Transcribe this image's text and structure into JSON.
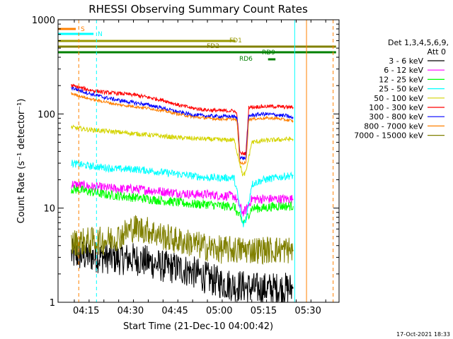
{
  "chart_data": {
    "type": "line",
    "title": "RHESSI Observing Summary Count Rates",
    "xlabel": "Start Time (21-Dec-10 04:00:42)",
    "ylabel": "Count Rate (s⁻¹ detector⁻¹)",
    "yscale": "log",
    "ylim": [
      1,
      1000
    ],
    "xlim_minutes": [
      4.5,
      40.5
    ],
    "x_ticks": [
      {
        "minute": 14,
        "label": "04:15"
      },
      {
        "minute": 29,
        "label": "04:30"
      },
      {
        "minute": 44,
        "label": "04:45"
      },
      {
        "minute": 59,
        "label": "05:00"
      },
      {
        "minute": 74,
        "label": "05:15"
      },
      {
        "minute": 89,
        "label": "05:30"
      }
    ],
    "y_ticks": [
      {
        "value": 1,
        "label": "1"
      },
      {
        "value": 10,
        "label": "10"
      },
      {
        "value": 100,
        "label": "100"
      },
      {
        "value": 1000,
        "label": "1000"
      }
    ],
    "legend": {
      "position": "right",
      "header": [
        "Det 1,3,4,5,6,9,",
        "Att 0"
      ]
    },
    "series": [
      {
        "name": "3 - 6 keV",
        "color": "#000000",
        "x": [
          9,
          15,
          20,
          25,
          30,
          35,
          40,
          45,
          50,
          55,
          60,
          64,
          66,
          70,
          74,
          78,
          82,
          84
        ],
        "y": [
          3.2,
          3.1,
          3.0,
          2.9,
          2.9,
          2.7,
          2.4,
          2.3,
          2.1,
          1.8,
          1.6,
          1.5,
          1.5,
          1.4,
          1.4,
          1.4,
          1.4,
          1.4
        ]
      },
      {
        "name": "6 - 12 keV",
        "color": "#ff00ff",
        "x": [
          9,
          15,
          20,
          25,
          30,
          35,
          40,
          45,
          50,
          55,
          60,
          64,
          65,
          67,
          68,
          70,
          74,
          78,
          82,
          84
        ],
        "y": [
          18,
          17,
          16.5,
          16,
          16,
          15.5,
          15,
          14.5,
          14,
          14,
          13.5,
          13.5,
          12,
          9,
          9.5,
          12.5,
          12.5,
          12.5,
          12.5,
          12.5
        ]
      },
      {
        "name": "12 - 25 keV",
        "color": "#00ff00",
        "x": [
          9,
          15,
          20,
          25,
          30,
          35,
          40,
          45,
          50,
          55,
          60,
          64,
          65,
          67,
          68,
          70,
          74,
          78,
          82,
          84
        ],
        "y": [
          16,
          15,
          14,
          13.5,
          13,
          12.5,
          12,
          11.5,
          11,
          11,
          10.5,
          10.5,
          9,
          7,
          7.5,
          10,
          10,
          10.5,
          10.5,
          10.5
        ]
      },
      {
        "name": "25 - 50 keV",
        "color": "#00ffff",
        "x": [
          9,
          15,
          20,
          25,
          30,
          35,
          40,
          45,
          50,
          55,
          60,
          64,
          65,
          67,
          68,
          70,
          74,
          78,
          82,
          84
        ],
        "y": [
          30,
          28,
          27,
          26,
          26,
          25,
          24,
          23,
          22,
          21,
          21,
          21,
          15,
          6.5,
          7.5,
          18,
          20,
          21,
          22,
          22
        ]
      },
      {
        "name": "50 - 100 keV",
        "color": "#d4d400",
        "x": [
          9,
          15,
          20,
          25,
          30,
          35,
          40,
          45,
          50,
          55,
          60,
          64,
          65,
          67,
          68,
          70,
          74,
          78,
          82,
          84
        ],
        "y": [
          72,
          68,
          66,
          64,
          62,
          60,
          58,
          56,
          55,
          54,
          53,
          53,
          40,
          22,
          24,
          50,
          52,
          53,
          54,
          54
        ]
      },
      {
        "name": "100 - 300 keV",
        "color": "#ff0000",
        "x": [
          9,
          15,
          20,
          25,
          30,
          35,
          40,
          45,
          50,
          55,
          60,
          64,
          65,
          66,
          68,
          69,
          74,
          78,
          82,
          84
        ],
        "y": [
          200,
          180,
          170,
          165,
          160,
          150,
          140,
          125,
          115,
          110,
          108,
          108,
          100,
          38,
          38,
          118,
          120,
          120,
          118,
          118
        ]
      },
      {
        "name": "300 - 800 keV",
        "color": "#0000ff",
        "x": [
          9,
          15,
          20,
          25,
          30,
          35,
          40,
          45,
          50,
          55,
          60,
          64,
          65,
          66,
          68,
          69,
          74,
          78,
          82,
          84
        ],
        "y": [
          190,
          165,
          150,
          140,
          132,
          125,
          115,
          105,
          98,
          95,
          94,
          94,
          90,
          34,
          34,
          96,
          100,
          98,
          95,
          90
        ]
      },
      {
        "name": "800 - 7000 keV",
        "color": "#ff8000",
        "x": [
          9,
          15,
          20,
          25,
          30,
          35,
          40,
          45,
          50,
          55,
          60,
          64,
          65,
          66,
          68,
          69,
          74,
          78,
          82,
          84
        ],
        "y": [
          165,
          145,
          135,
          125,
          120,
          115,
          108,
          100,
          93,
          90,
          88,
          88,
          84,
          30,
          30,
          88,
          90,
          90,
          86,
          84
        ]
      },
      {
        "name": "7000 - 15000 keV",
        "color": "#808000",
        "x": [
          9,
          15,
          20,
          25,
          30,
          35,
          40,
          45,
          50,
          55,
          60,
          64,
          66,
          70,
          74,
          78,
          82,
          84
        ],
        "y": [
          4.2,
          4.5,
          4.5,
          5.0,
          6.2,
          5.8,
          5.0,
          4.5,
          4.2,
          3.8,
          3.6,
          3.6,
          3.6,
          3.6,
          3.6,
          3.6,
          3.6,
          3.6
        ]
      }
    ],
    "flag_bars": [
      {
        "label": "S",
        "color": "#ff8000",
        "x_start": 0,
        "x_end": 6
      },
      {
        "label": "N",
        "color": "#00ffff",
        "x_start": 0,
        "x_end": 12
      },
      {
        "label": "FD1",
        "color": "#999900",
        "x_start": 0,
        "x_end": 60
      },
      {
        "label": "FD2",
        "color": "#808000",
        "x_start": 0,
        "x_end": 94
      },
      {
        "label": "RD9",
        "color": "#008000",
        "x_start": 0,
        "x_end": 94
      },
      {
        "label": "RD6",
        "color": "#008000",
        "x_start": 71,
        "x_end": 73.5
      }
    ],
    "vertical_markers": [
      {
        "x": 7,
        "color": "#ff8000",
        "style": "dashed"
      },
      {
        "x": 13,
        "color": "#00ffff",
        "style": "dashed"
      },
      {
        "x": 80,
        "color": "#00ffff",
        "style": "solid"
      },
      {
        "x": 84,
        "color": "#ff8000",
        "style": "solid"
      },
      {
        "x": 93,
        "color": "#ff8000",
        "style": "dashed"
      }
    ]
  },
  "footer": {
    "timestamp": "17-Oct-2021 18:33"
  }
}
